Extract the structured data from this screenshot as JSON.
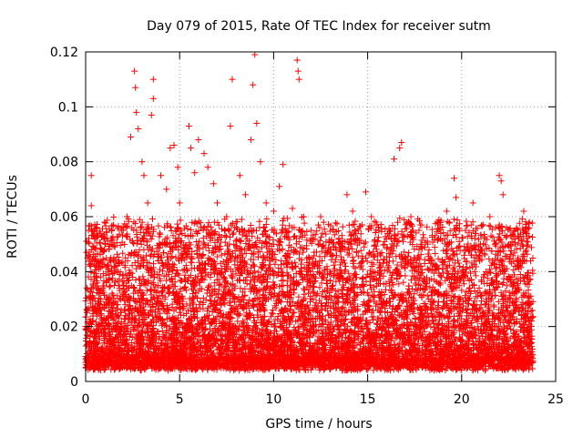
{
  "chart_data": {
    "type": "scatter",
    "title": "Day 079 of 2015, Rate Of TEC Index for receiver sutm",
    "xlabel": "GPS time / hours",
    "ylabel": "ROTI / TECUs",
    "xlim": [
      0,
      25
    ],
    "ylim": [
      0,
      0.12
    ],
    "xticks": [
      0,
      5,
      10,
      15,
      20,
      25
    ],
    "xtick_labels": [
      "0",
      "5",
      "10",
      "15",
      "20",
      "25"
    ],
    "yticks": [
      0,
      0.02,
      0.04,
      0.06,
      0.08,
      0.1,
      0.12
    ],
    "ytick_labels": [
      "0",
      "0.02",
      "0.04",
      "0.06",
      "0.08",
      "0.1",
      "0.12"
    ],
    "grid": true,
    "marker": "plus",
    "color": "#ff0000",
    "data_x_range": [
      0,
      23.8
    ],
    "series": [
      {
        "points": [
          [
            0.1,
            0.045
          ],
          [
            0.15,
            0.055
          ],
          [
            0.3,
            0.075
          ],
          [
            0.3,
            0.064
          ],
          [
            0.5,
            0.052
          ],
          [
            1.0,
            0.048
          ],
          [
            1.5,
            0.045
          ],
          [
            2.0,
            0.055
          ],
          [
            2.2,
            0.06
          ],
          [
            2.4,
            0.089
          ],
          [
            2.6,
            0.113
          ],
          [
            2.65,
            0.107
          ],
          [
            2.7,
            0.098
          ],
          [
            2.8,
            0.092
          ],
          [
            3.0,
            0.08
          ],
          [
            3.1,
            0.075
          ],
          [
            3.3,
            0.065
          ],
          [
            3.5,
            0.097
          ],
          [
            3.6,
            0.103
          ],
          [
            3.6,
            0.11
          ],
          [
            4.0,
            0.075
          ],
          [
            4.3,
            0.07
          ],
          [
            4.5,
            0.085
          ],
          [
            4.7,
            0.086
          ],
          [
            4.9,
            0.078
          ],
          [
            5.0,
            0.065
          ],
          [
            5.5,
            0.093
          ],
          [
            5.6,
            0.085
          ],
          [
            5.8,
            0.076
          ],
          [
            6.0,
            0.088
          ],
          [
            6.3,
            0.083
          ],
          [
            6.5,
            0.078
          ],
          [
            6.8,
            0.072
          ],
          [
            7.0,
            0.065
          ],
          [
            7.5,
            0.06
          ],
          [
            7.7,
            0.093
          ],
          [
            7.8,
            0.11
          ],
          [
            8.2,
            0.075
          ],
          [
            8.5,
            0.068
          ],
          [
            8.8,
            0.088
          ],
          [
            8.9,
            0.108
          ],
          [
            9.0,
            0.119
          ],
          [
            9.1,
            0.094
          ],
          [
            9.3,
            0.08
          ],
          [
            9.6,
            0.065
          ],
          [
            10.0,
            0.062
          ],
          [
            10.3,
            0.071
          ],
          [
            10.5,
            0.079
          ],
          [
            11.0,
            0.063
          ],
          [
            11.25,
            0.117
          ],
          [
            11.3,
            0.113
          ],
          [
            11.35,
            0.11
          ],
          [
            11.6,
            0.06
          ],
          [
            12.0,
            0.055
          ],
          [
            12.5,
            0.06
          ],
          [
            13.0,
            0.048
          ],
          [
            13.5,
            0.05
          ],
          [
            13.9,
            0.068
          ],
          [
            14.2,
            0.062
          ],
          [
            14.5,
            0.055
          ],
          [
            14.9,
            0.069
          ],
          [
            15.2,
            0.06
          ],
          [
            15.6,
            0.055
          ],
          [
            16.0,
            0.052
          ],
          [
            16.4,
            0.081
          ],
          [
            16.7,
            0.085
          ],
          [
            16.8,
            0.087
          ],
          [
            17.3,
            0.06
          ],
          [
            17.8,
            0.057
          ],
          [
            18.2,
            0.05
          ],
          [
            18.7,
            0.058
          ],
          [
            19.2,
            0.062
          ],
          [
            19.6,
            0.074
          ],
          [
            19.7,
            0.067
          ],
          [
            20.2,
            0.055
          ],
          [
            20.6,
            0.065
          ],
          [
            21.0,
            0.05
          ],
          [
            21.5,
            0.06
          ],
          [
            22.0,
            0.075
          ],
          [
            22.1,
            0.073
          ],
          [
            22.2,
            0.068
          ],
          [
            22.6,
            0.05
          ],
          [
            23.0,
            0.045
          ],
          [
            23.3,
            0.062
          ],
          [
            23.6,
            0.058
          ]
        ]
      }
    ]
  }
}
